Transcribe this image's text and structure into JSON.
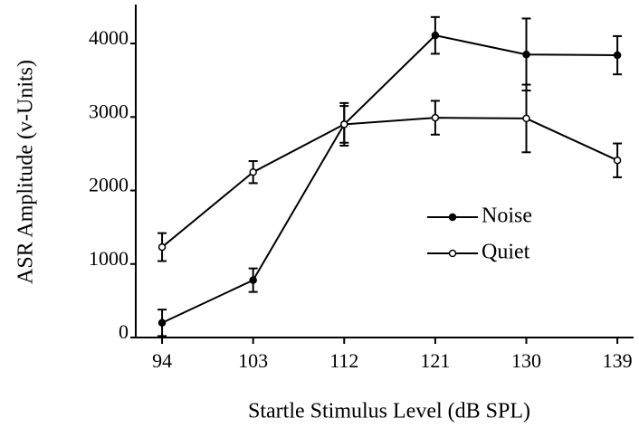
{
  "chart_data": {
    "type": "line",
    "x_label": "Startle Stimulus Level (dB SPL)",
    "y_label": "ASR Amplitude (v-Units)",
    "x": [
      94,
      103,
      112,
      121,
      130,
      139
    ],
    "xlim": [
      91.4,
      140.6
    ],
    "xticks": [
      94,
      103,
      112,
      121,
      130,
      139
    ],
    "ylim": [
      0,
      4530
    ],
    "yticks": [
      0,
      1000,
      2000,
      3000,
      4000
    ],
    "grid": false,
    "legend": "center-right",
    "series": [
      {
        "name": "Noise",
        "color": "#000000",
        "marker": "filled",
        "values": [
          200,
          780,
          2900,
          4110,
          3850,
          3840
        ],
        "errors": [
          180,
          160,
          290,
          250,
          490,
          260
        ]
      },
      {
        "name": "Quiet",
        "color": "#000000",
        "marker": "open",
        "values": [
          1230,
          2250,
          2900,
          2990,
          2980,
          2410
        ],
        "errors": [
          190,
          150,
          250,
          230,
          460,
          230
        ]
      }
    ]
  }
}
